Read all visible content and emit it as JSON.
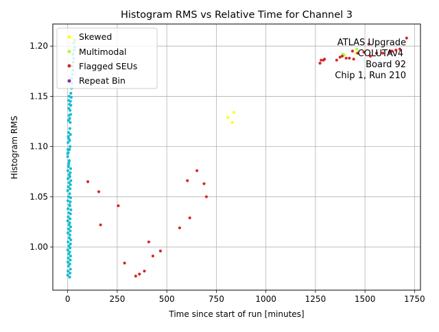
{
  "chart_data": {
    "type": "scatter",
    "title": "Histogram RMS vs Relative Time for Channel 3",
    "xlabel": "Time since start of run [minutes]",
    "ylabel": "Histogram RMS",
    "xlim": [
      -75,
      1780
    ],
    "ylim": [
      0.957,
      1.222
    ],
    "xticks": [
      0,
      250,
      500,
      750,
      1000,
      1250,
      1500,
      1750
    ],
    "yticks": [
      1.0,
      1.05,
      1.1,
      1.15,
      1.2
    ],
    "grid": true,
    "legend_position": "top-left",
    "annotation": [
      "ATLAS Upgrade",
      "COLUTAv4",
      "Board 92",
      "Chip 1, Run 210"
    ],
    "series": [
      {
        "name": "",
        "color": "#17becf",
        "points": [
          [
            0,
            0.972
          ],
          [
            2,
            0.976
          ],
          [
            4,
            0.981
          ],
          [
            1,
            0.985
          ],
          [
            3,
            0.989
          ],
          [
            5,
            0.993
          ],
          [
            0,
            0.997
          ],
          [
            6,
            1.001
          ],
          [
            2,
            1.005
          ],
          [
            8,
            1.009
          ],
          [
            1,
            1.014
          ],
          [
            4,
            1.018
          ],
          [
            7,
            1.022
          ],
          [
            0,
            1.026
          ],
          [
            3,
            1.03
          ],
          [
            6,
            1.034
          ],
          [
            2,
            1.038
          ],
          [
            9,
            1.042
          ],
          [
            1,
            1.046
          ],
          [
            5,
            1.05
          ],
          [
            0,
            1.056
          ],
          [
            3,
            1.06
          ],
          [
            7,
            1.064
          ],
          [
            2,
            1.068
          ],
          [
            8,
            1.072
          ],
          [
            1,
            1.076
          ],
          [
            4,
            1.08
          ],
          [
            6,
            1.084
          ],
          [
            0,
            1.09
          ],
          [
            3,
            1.094
          ],
          [
            9,
            1.097
          ],
          [
            12,
            1.1
          ],
          [
            10,
            1.106
          ],
          [
            14,
            1.112
          ],
          [
            11,
            1.118
          ],
          [
            13,
            1.124
          ],
          [
            10,
            1.128
          ],
          [
            15,
            1.132
          ],
          [
            12,
            1.136
          ],
          [
            16,
            1.141
          ],
          [
            14,
            1.145
          ],
          [
            18,
            1.149
          ],
          [
            16,
            1.153
          ],
          [
            20,
            1.158
          ],
          [
            22,
            1.163
          ],
          [
            19,
            1.168
          ],
          [
            24,
            1.172
          ],
          [
            26,
            1.176
          ],
          [
            23,
            1.18
          ],
          [
            28,
            1.184
          ],
          [
            30,
            1.188
          ],
          [
            27,
            1.192
          ],
          [
            32,
            1.196
          ],
          [
            34,
            1.199
          ],
          [
            31,
            1.203
          ],
          [
            36,
            1.206
          ],
          [
            10,
            0.97
          ],
          [
            12,
            0.974
          ],
          [
            14,
            0.978
          ],
          [
            11,
            0.983
          ],
          [
            13,
            0.987
          ],
          [
            15,
            0.991
          ],
          [
            10,
            0.995
          ],
          [
            12,
            0.999
          ],
          [
            14,
            1.003
          ],
          [
            16,
            1.007
          ],
          [
            11,
            1.012
          ],
          [
            13,
            1.016
          ],
          [
            15,
            1.02
          ],
          [
            10,
            1.024
          ],
          [
            12,
            1.028
          ],
          [
            14,
            1.033
          ],
          [
            16,
            1.037
          ],
          [
            11,
            1.041
          ],
          [
            13,
            1.045
          ],
          [
            15,
            1.049
          ],
          [
            10,
            1.053
          ],
          [
            12,
            1.058
          ],
          [
            14,
            1.062
          ],
          [
            16,
            1.066
          ],
          [
            11,
            1.07
          ],
          [
            13,
            1.074
          ],
          [
            15,
            1.078
          ],
          [
            5,
            1.146
          ],
          [
            8,
            1.15
          ],
          [
            6,
            1.138
          ],
          [
            9,
            1.142
          ],
          [
            4,
            1.126
          ],
          [
            7,
            1.131
          ],
          [
            3,
            1.11
          ],
          [
            5,
            1.114
          ],
          [
            2,
            1.104
          ],
          [
            6,
            1.108
          ],
          [
            1,
            1.097
          ],
          [
            0,
            1.093
          ],
          [
            4,
            1.082
          ],
          [
            8,
            1.086
          ]
        ]
      },
      {
        "name": "Skewed",
        "color": "#ffff00",
        "points": [
          [
            808,
            1.129
          ],
          [
            830,
            1.124
          ],
          [
            838,
            1.134
          ],
          [
            14,
            1.203
          ],
          [
            26,
            1.207
          ],
          [
            1455,
            1.193
          ]
        ]
      },
      {
        "name": "Multimodal",
        "color": "#adff2f",
        "points": [
          [
            1458,
            1.197
          ],
          [
            1388,
            1.192
          ],
          [
            1395,
            1.191
          ]
        ]
      },
      {
        "name": "Flagged SEUs",
        "color": "#d62728",
        "points": [
          [
            102,
            1.065
          ],
          [
            157,
            1.055
          ],
          [
            166,
            1.022
          ],
          [
            255,
            1.041
          ],
          [
            287,
            0.984
          ],
          [
            343,
            0.971
          ],
          [
            362,
            0.973
          ],
          [
            387,
            0.976
          ],
          [
            409,
            1.005
          ],
          [
            430,
            0.991
          ],
          [
            468,
            0.996
          ],
          [
            565,
            1.019
          ],
          [
            604,
            1.066
          ],
          [
            616,
            1.029
          ],
          [
            652,
            1.076
          ],
          [
            688,
            1.063
          ],
          [
            700,
            1.05
          ],
          [
            1273,
            1.183
          ],
          [
            1279,
            1.186
          ],
          [
            1291,
            1.186
          ],
          [
            1296,
            1.187
          ],
          [
            1357,
            1.186
          ],
          [
            1374,
            1.189
          ],
          [
            1385,
            1.19
          ],
          [
            1405,
            1.188
          ],
          [
            1421,
            1.188
          ],
          [
            1437,
            1.195
          ],
          [
            1443,
            1.187
          ],
          [
            1463,
            1.193
          ],
          [
            1494,
            1.194
          ],
          [
            1519,
            1.202
          ],
          [
            1527,
            1.19
          ],
          [
            1558,
            1.193
          ],
          [
            1590,
            1.193
          ],
          [
            1623,
            1.194
          ],
          [
            1636,
            1.195
          ],
          [
            1656,
            1.196
          ],
          [
            1676,
            1.197
          ],
          [
            1710,
            1.208
          ]
        ]
      },
      {
        "name": "Repeat Bin",
        "color": "#7b2fa0",
        "points": []
      }
    ]
  }
}
